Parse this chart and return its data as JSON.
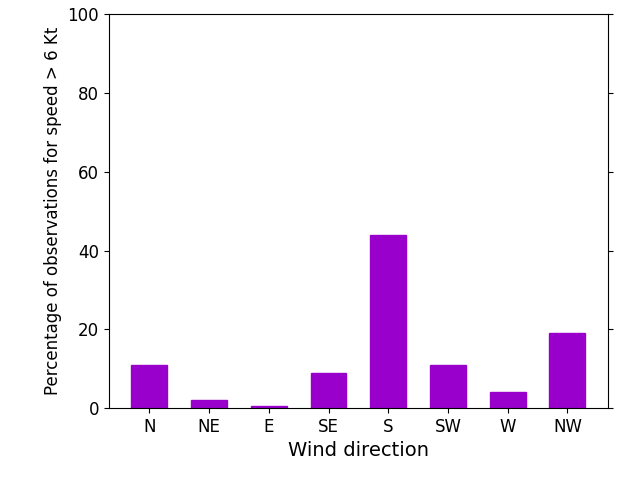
{
  "categories": [
    "N",
    "NE",
    "E",
    "SE",
    "S",
    "SW",
    "W",
    "NW"
  ],
  "values": [
    11,
    2,
    0.5,
    9,
    44,
    11,
    4,
    19
  ],
  "bar_color": "#9900cc",
  "xlabel": "Wind direction",
  "ylabel": "Percentage of observations for speed > 6 Kt",
  "ylim": [
    0,
    100
  ],
  "yticks": [
    0,
    20,
    40,
    60,
    80,
    100
  ],
  "background_color": "#ffffff",
  "bar_width": 0.6,
  "xlabel_fontsize": 14,
  "ylabel_fontsize": 12,
  "tick_fontsize": 12
}
